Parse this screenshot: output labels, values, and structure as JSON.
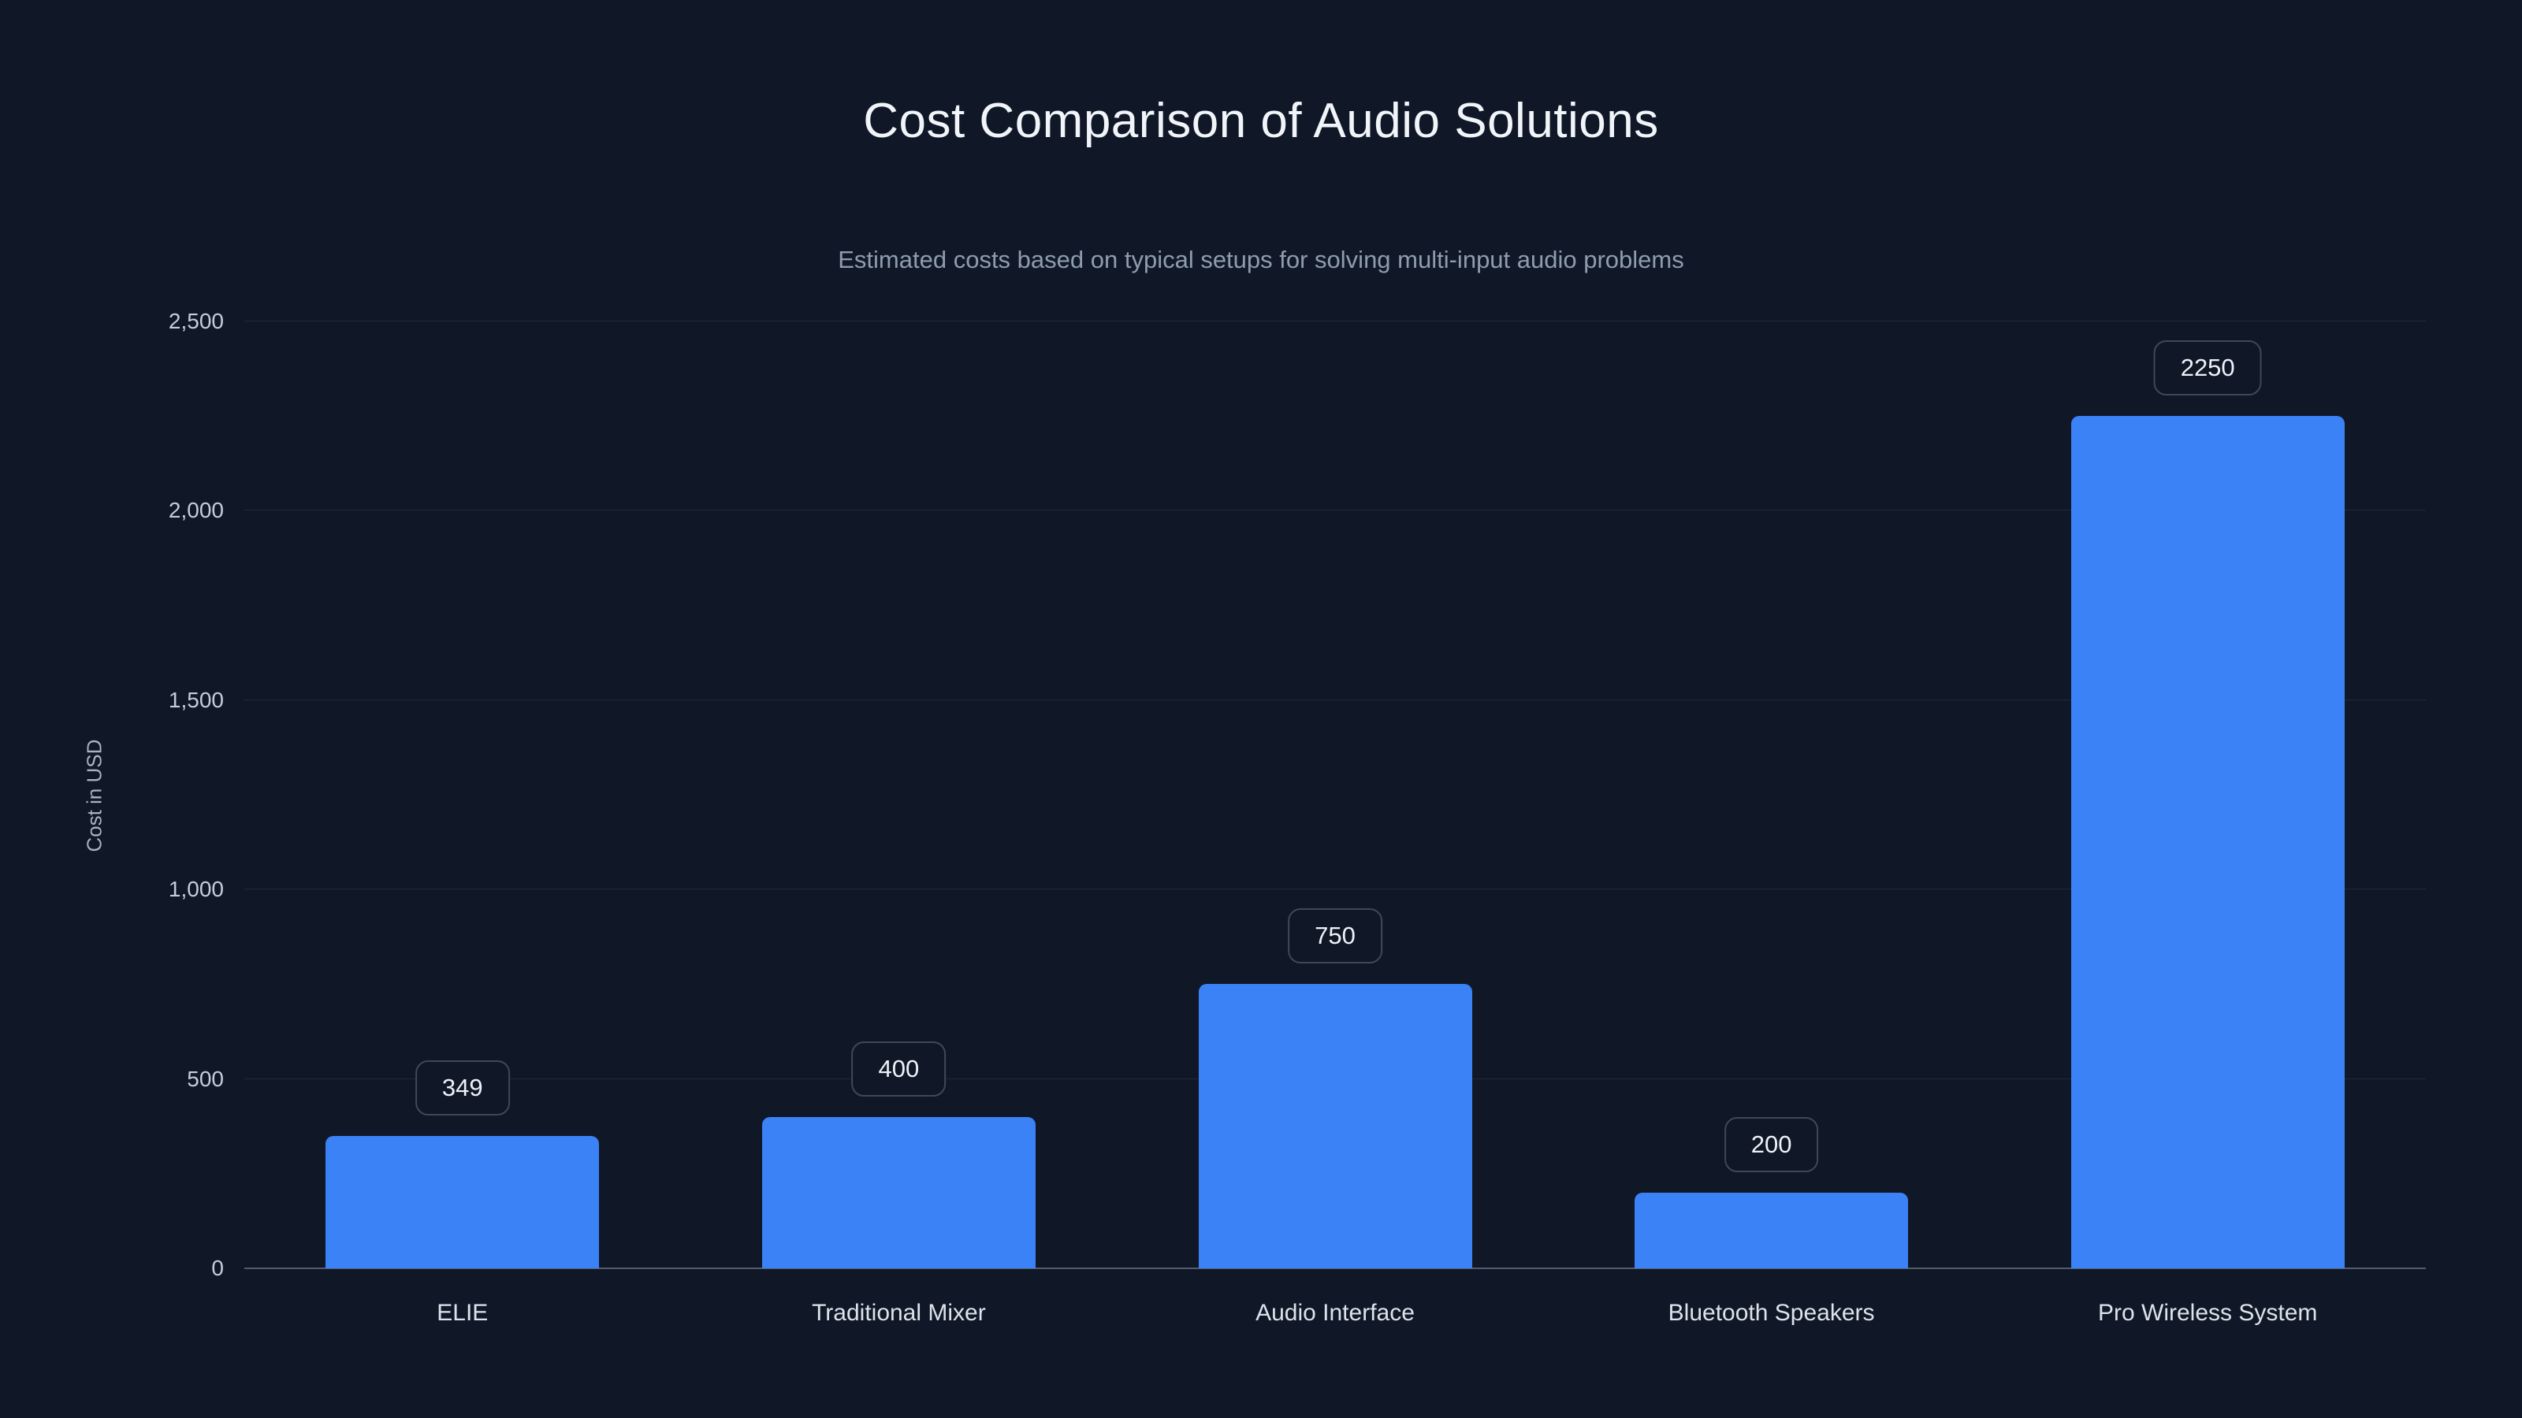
{
  "chart_data": {
    "type": "bar",
    "title": "Cost Comparison of Audio Solutions",
    "subtitle": "Estimated costs based on typical setups for solving multi-input audio problems",
    "categories": [
      "ELIE",
      "Traditional Mixer",
      "Audio Interface",
      "Bluetooth Speakers",
      "Pro Wireless System"
    ],
    "values": [
      349,
      400,
      750,
      200,
      2250
    ],
    "value_labels": [
      "349",
      "400",
      "750",
      "200",
      "2250"
    ],
    "xlabel": "",
    "ylabel": "Cost in USD",
    "ylim": [
      0,
      2500
    ],
    "yticks": [
      0,
      500,
      1000,
      1500,
      2000,
      2500
    ],
    "ytick_labels": [
      "0",
      "500",
      "1,000",
      "1,500",
      "2,000",
      "2,500"
    ],
    "grid": true,
    "legend": false,
    "bar_color": "#3b82f6",
    "background_color": "#101828",
    "badge_border_color": "#3e4857"
  }
}
